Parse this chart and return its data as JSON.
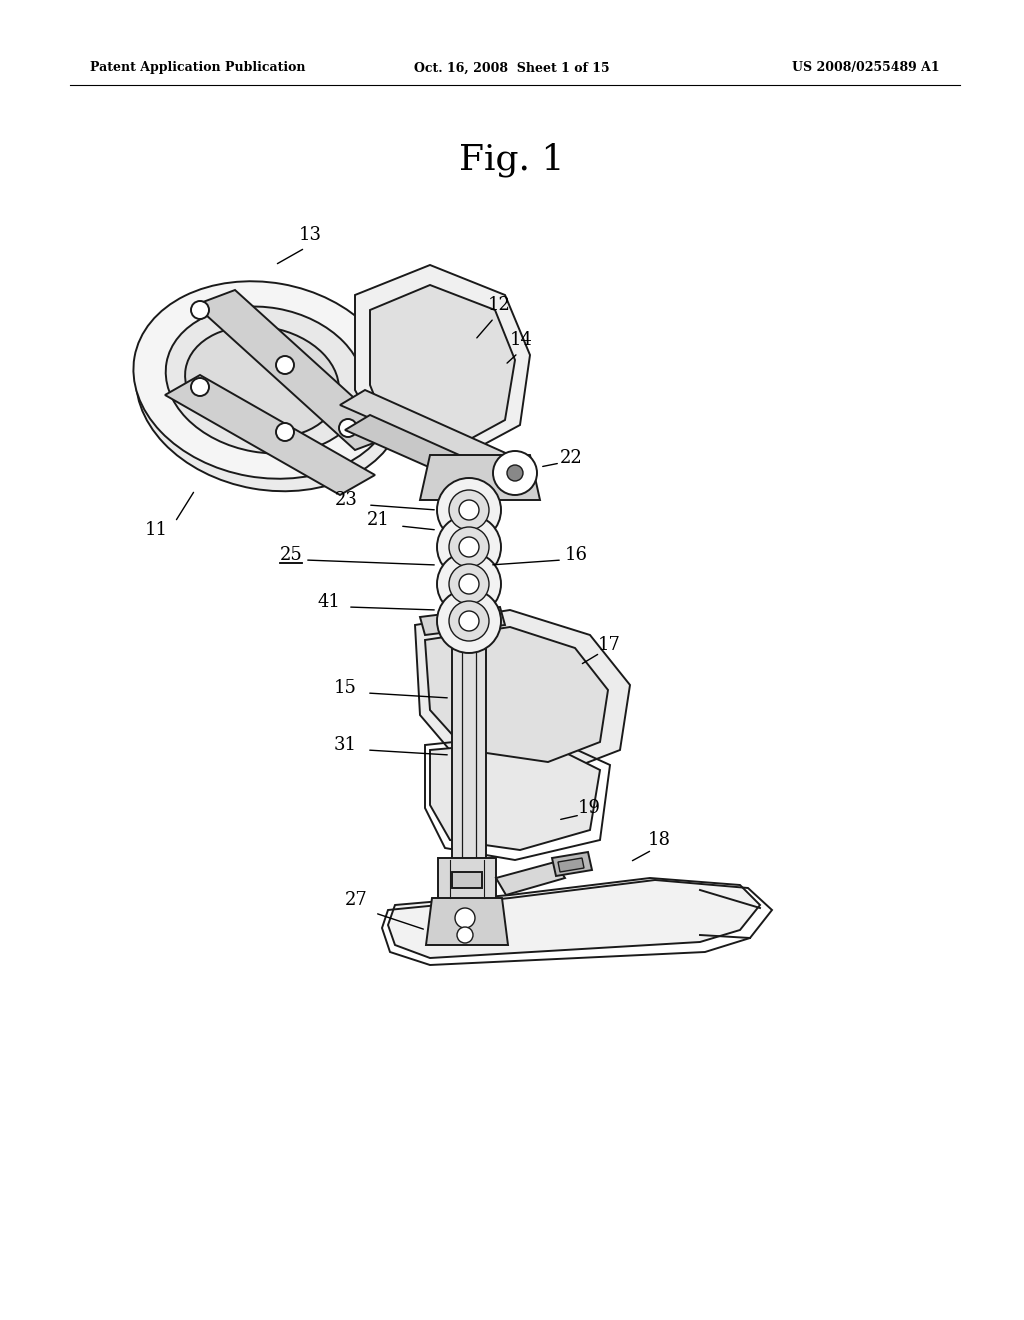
{
  "background_color": "#ffffff",
  "header_left": "Patent Application Publication",
  "header_center": "Oct. 16, 2008  Sheet 1 of 15",
  "header_right": "US 2008/0255489 A1",
  "figure_label": "Fig. 1",
  "fig_width": 10.24,
  "fig_height": 13.2,
  "dpi": 100
}
